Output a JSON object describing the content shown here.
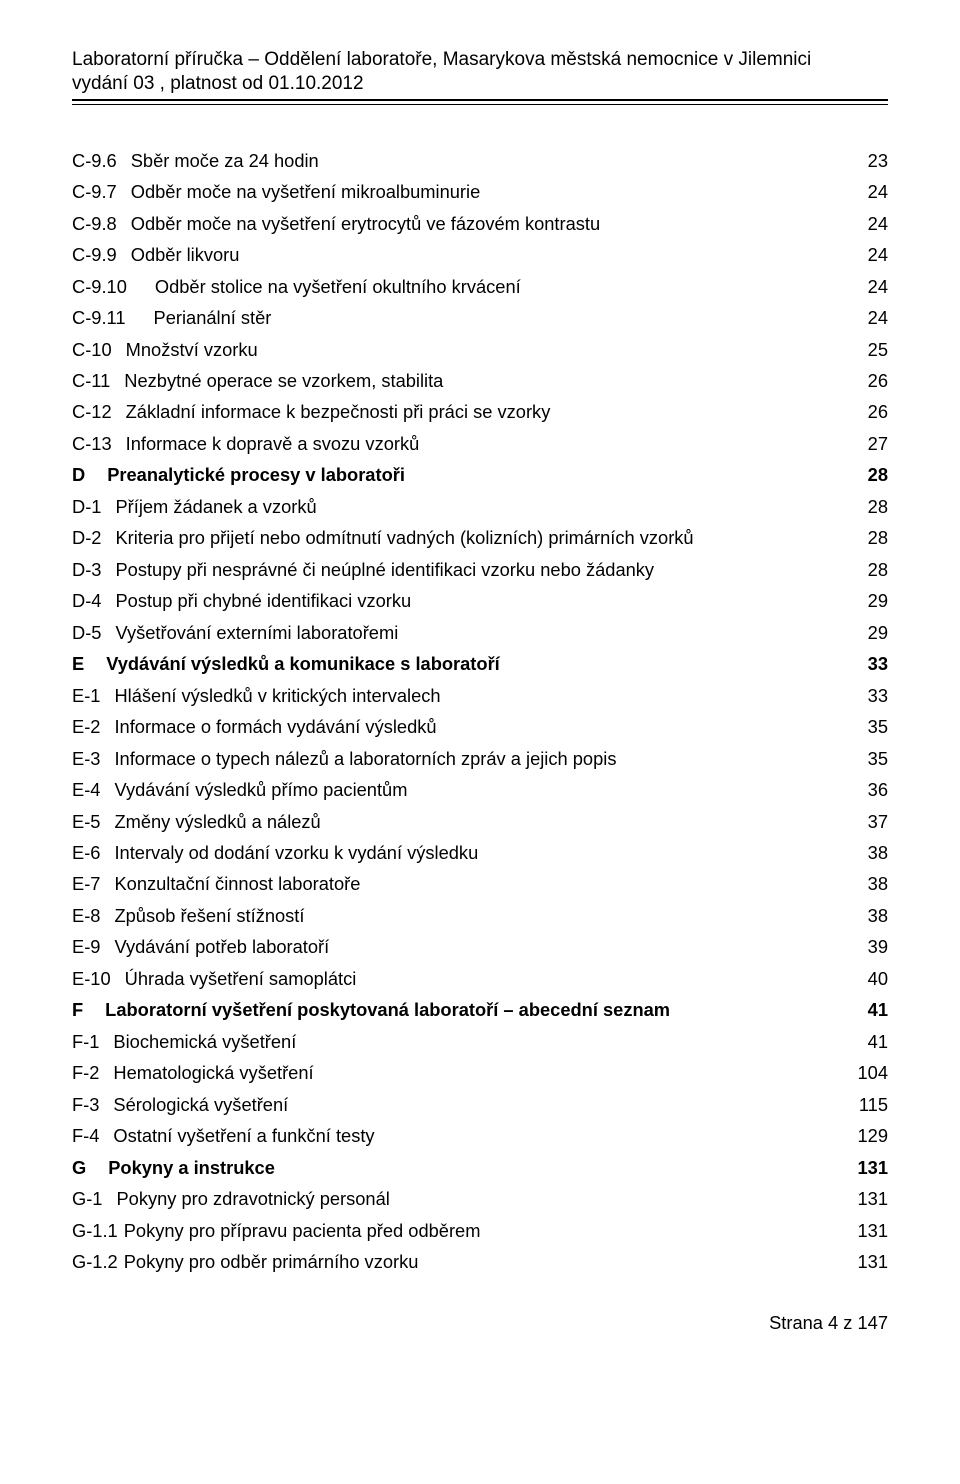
{
  "header": {
    "title": "Laboratorní příručka – Oddělení laboratoře, Masarykova městská nemocnice v Jilemnici",
    "subtitle": "vydání 03 , platnost od  01.10.2012"
  },
  "toc": [
    {
      "code": "C-9.6",
      "text": "Sběr moče za 24 hodin",
      "page": "23",
      "bold": false,
      "indent": 0,
      "codePad": "0"
    },
    {
      "code": "C-9.7",
      "text": "Odběr moče na vyšetření mikroalbuminurie",
      "page": "24",
      "bold": false,
      "indent": 0,
      "codePad": "0"
    },
    {
      "code": "C-9.8",
      "text": "Odběr moče na vyšetření erytrocytů ve fázovém kontrastu",
      "page": "24",
      "bold": false,
      "indent": 0,
      "codePad": "0"
    },
    {
      "code": "C-9.9",
      "text": "Odběr likvoru",
      "page": "24",
      "bold": false,
      "indent": 0,
      "codePad": "0"
    },
    {
      "code": "C-9.10",
      "text": "Odběr stolice na vyšetření okultního krvácení",
      "page": "24",
      "bold": false,
      "indent": 0,
      "codePad": "1"
    },
    {
      "code": "C-9.11",
      "text": "Perianální stěr",
      "page": "24",
      "bold": false,
      "indent": 0,
      "codePad": "1"
    },
    {
      "code": "C-10",
      "text": "Množství vzorku",
      "page": "25",
      "bold": false,
      "indent": 0,
      "codePad": "0"
    },
    {
      "code": "C-11",
      "text": "Nezbytné operace se vzorkem, stabilita",
      "page": "26",
      "bold": false,
      "indent": 0,
      "codePad": "0"
    },
    {
      "code": "C-12",
      "text": "Základní informace k bezpečnosti při práci se vzorky",
      "page": "26",
      "bold": false,
      "indent": 0,
      "codePad": "0"
    },
    {
      "code": "C-13",
      "text": "Informace k dopravě a svozu vzorků",
      "page": "27",
      "bold": false,
      "indent": 0,
      "codePad": "0"
    },
    {
      "code": "D",
      "text": "Preanalytické procesy v laboratoři",
      "page": "28",
      "bold": true,
      "indent": 0,
      "codePad": "2"
    },
    {
      "code": "D-1",
      "text": "Příjem žádanek a vzorků",
      "page": "28",
      "bold": false,
      "indent": 0,
      "codePad": "0"
    },
    {
      "code": "D-2",
      "text": "Kriteria pro přijetí nebo odmítnutí vadných (kolizních) primárních vzorků",
      "page": "28",
      "bold": false,
      "indent": 0,
      "codePad": "0"
    },
    {
      "code": "D-3",
      "text": "Postupy při nesprávné či neúplné identifikaci vzorku nebo žádanky",
      "page": "28",
      "bold": false,
      "indent": 0,
      "codePad": "0"
    },
    {
      "code": "D-4",
      "text": "Postup při chybné identifikaci vzorku",
      "page": "29",
      "bold": false,
      "indent": 0,
      "codePad": "0"
    },
    {
      "code": "D-5",
      "text": "Vyšetřování externími laboratořemi",
      "page": "29",
      "bold": false,
      "indent": 0,
      "codePad": "0"
    },
    {
      "code": "E",
      "text": "Vydávání výsledků a komunikace s laboratoří",
      "page": "33",
      "bold": true,
      "indent": 0,
      "codePad": "2"
    },
    {
      "code": "E-1",
      "text": "Hlášení výsledků v kritických intervalech",
      "page": "33",
      "bold": false,
      "indent": 0,
      "codePad": "0"
    },
    {
      "code": "E-2",
      "text": "Informace o formách vydávání výsledků",
      "page": "35",
      "bold": false,
      "indent": 0,
      "codePad": "0"
    },
    {
      "code": "E-3",
      "text": "Informace o typech nálezů a laboratorních zpráv a jejich popis",
      "page": "35",
      "bold": false,
      "indent": 0,
      "codePad": "0"
    },
    {
      "code": "E-4",
      "text": "Vydávání výsledků přímo pacientům",
      "page": "36",
      "bold": false,
      "indent": 0,
      "codePad": "0"
    },
    {
      "code": "E-5",
      "text": "Změny výsledků a nálezů",
      "page": "37",
      "bold": false,
      "indent": 0,
      "codePad": "0"
    },
    {
      "code": "E-6",
      "text": "Intervaly od dodání vzorku k vydání výsledku",
      "page": "38",
      "bold": false,
      "indent": 0,
      "codePad": "0"
    },
    {
      "code": "E-7",
      "text": "Konzultační činnost laboratoře",
      "page": "38",
      "bold": false,
      "indent": 0,
      "codePad": "0"
    },
    {
      "code": "E-8",
      "text": "Způsob řešení stížností",
      "page": "38",
      "bold": false,
      "indent": 0,
      "codePad": "0"
    },
    {
      "code": "E-9",
      "text": "Vydávání potřeb laboratoří",
      "page": "39",
      "bold": false,
      "indent": 0,
      "codePad": "0"
    },
    {
      "code": "E-10",
      "text": "Úhrada vyšetření samoplátci",
      "page": "40",
      "bold": false,
      "indent": 0,
      "codePad": "0"
    },
    {
      "code": "F",
      "text": "Laboratorní vyšetření poskytovaná laboratoří – abecední seznam",
      "page": "41",
      "bold": true,
      "indent": 0,
      "codePad": "2"
    },
    {
      "code": "F-1",
      "text": "Biochemická vyšetření",
      "page": "41",
      "bold": false,
      "indent": 0,
      "codePad": "0"
    },
    {
      "code": "F-2",
      "text": "Hematologická vyšetření",
      "page": "104",
      "bold": false,
      "indent": 0,
      "codePad": "0"
    },
    {
      "code": "F-3",
      "text": "Sérologická vyšetření",
      "page": "115",
      "bold": false,
      "indent": 0,
      "codePad": "0"
    },
    {
      "code": "F-4",
      "text": "Ostatní vyšetření a funkční testy",
      "page": "129",
      "bold": false,
      "indent": 0,
      "codePad": "0"
    },
    {
      "code": "G",
      "text": "Pokyny a instrukce",
      "page": "131",
      "bold": true,
      "indent": 0,
      "codePad": "2"
    },
    {
      "code": "G-1",
      "text": "Pokyny pro zdravotnický personál",
      "page": "131",
      "bold": false,
      "indent": 0,
      "codePad": "0"
    },
    {
      "code": "G-1.1",
      "text": "Pokyny pro přípravu pacienta před odběrem",
      "page": "131",
      "bold": false,
      "indent": 0,
      "codePad": "3"
    },
    {
      "code": "G-1.2",
      "text": "Pokyny pro odběr primárního vzorku",
      "page": "131",
      "bold": false,
      "indent": 0,
      "codePad": "3"
    }
  ],
  "footer": {
    "text": "Strana 4 z 147"
  }
}
